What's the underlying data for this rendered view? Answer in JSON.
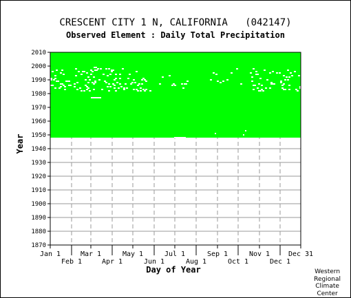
{
  "chart_data": {
    "type": "scatter",
    "title": "CRESCENT CITY 1 N, CALIFORNIA   (042147)",
    "subtitle": "Observed Element : Daily Total Precipitation",
    "xlabel": "Day of Year",
    "ylabel": "Year",
    "xlim": [
      1,
      365
    ],
    "ylim": [
      1870,
      2010
    ],
    "x_ticks_row1": [
      {
        "label": "Jan 1",
        "day": 1
      },
      {
        "label": "Mar 1",
        "day": 60
      },
      {
        "label": "May 1",
        "day": 121
      },
      {
        "label": "Jul 1",
        "day": 182
      },
      {
        "label": "Sep 1",
        "day": 244
      },
      {
        "label": "Nov 1",
        "day": 305
      },
      {
        "label": "Dec 31",
        "day": 365
      }
    ],
    "x_ticks_row2": [
      {
        "label": "Feb 1",
        "day": 32
      },
      {
        "label": "Apr 1",
        "day": 91
      },
      {
        "label": "Jun 1",
        "day": 152
      },
      {
        "label": "Aug 1",
        "day": 213
      },
      {
        "label": "Oct 1",
        "day": 274
      },
      {
        "label": "Dec 1",
        "day": 335
      }
    ],
    "y_ticks": [
      1870,
      1880,
      1890,
      1900,
      1910,
      1920,
      1930,
      1940,
      1950,
      1960,
      1970,
      1980,
      1990,
      2000,
      2010
    ],
    "grid": true,
    "legend": "none",
    "coverage": {
      "year_start": 1948,
      "year_end": 2010,
      "color": "#00ff00",
      "description_series": "observed days"
    },
    "gaps": [
      {
        "day_start": 60,
        "day_end": 75,
        "year": 1977
      },
      {
        "day_start": 64,
        "day_end": 69,
        "year": 1999
      },
      {
        "day_start": 181,
        "day_end": 198,
        "year": 1948
      },
      {
        "day_start": 240,
        "day_end": 242,
        "year": 1951
      },
      {
        "day_start": 284,
        "day_end": 286,
        "year": 1953
      },
      {
        "day_start": 281,
        "day_end": 283,
        "year": 1950
      }
    ],
    "gap_band_years": [
      1982,
      1998
    ],
    "gap_band_color": "#ffffff"
  },
  "credit": [
    "Western",
    "Regional",
    "Climate",
    "Center"
  ],
  "colors": {
    "data": "#00ff00",
    "grid": "#999999",
    "axis": "#000000",
    "background": "#ffffff"
  }
}
